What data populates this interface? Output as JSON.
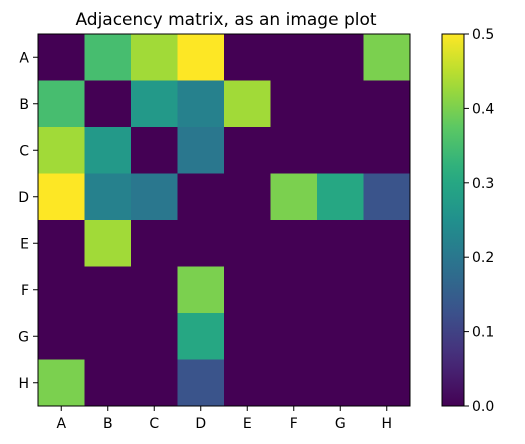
{
  "chart_data": {
    "type": "heatmap",
    "title": "Adjacency matrix, as an image plot",
    "x_categories": [
      "A",
      "B",
      "C",
      "D",
      "E",
      "F",
      "G",
      "H"
    ],
    "y_categories": [
      "A",
      "B",
      "C",
      "D",
      "E",
      "F",
      "G",
      "H"
    ],
    "values": [
      [
        0.0,
        0.35,
        0.43,
        0.5,
        0.0,
        0.0,
        0.0,
        0.4
      ],
      [
        0.35,
        0.0,
        0.27,
        0.22,
        0.43,
        0.0,
        0.0,
        0.0
      ],
      [
        0.43,
        0.27,
        0.0,
        0.2,
        0.0,
        0.0,
        0.0,
        0.0
      ],
      [
        0.5,
        0.22,
        0.2,
        0.0,
        0.0,
        0.4,
        0.3,
        0.13
      ],
      [
        0.0,
        0.43,
        0.0,
        0.0,
        0.0,
        0.0,
        0.0,
        0.0
      ],
      [
        0.0,
        0.0,
        0.0,
        0.4,
        0.0,
        0.0,
        0.0,
        0.0
      ],
      [
        0.0,
        0.0,
        0.0,
        0.3,
        0.0,
        0.0,
        0.0,
        0.0
      ],
      [
        0.4,
        0.0,
        0.0,
        0.13,
        0.0,
        0.0,
        0.0,
        0.0
      ]
    ],
    "colorbar": {
      "colormap": "viridis",
      "min": 0.0,
      "max": 0.5,
      "ticks": [
        0.0,
        0.1,
        0.2,
        0.3,
        0.4,
        0.5
      ],
      "tick_labels": [
        "0.0",
        "0.1",
        "0.2",
        "0.3",
        "0.4",
        "0.5"
      ]
    },
    "grid": false
  }
}
